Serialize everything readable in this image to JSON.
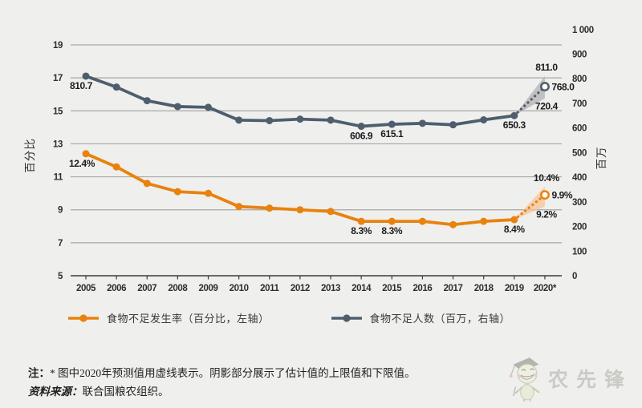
{
  "page": {
    "background": "#efefed"
  },
  "chart_data": {
    "type": "line",
    "title": "",
    "years": [
      2005,
      2006,
      2007,
      2008,
      2009,
      2010,
      2011,
      2012,
      2013,
      2014,
      2015,
      2016,
      2017,
      2018,
      2019,
      2020
    ],
    "x_labels": [
      "2005",
      "2006",
      "2007",
      "2008",
      "2009",
      "2010",
      "2011",
      "2012",
      "2013",
      "2014",
      "2015",
      "2016",
      "2017",
      "2018",
      "2019",
      "2020*"
    ],
    "left_axis": {
      "label": "百分比",
      "min": 5,
      "max": 19,
      "ticks": [
        19,
        17,
        15,
        13,
        11,
        9,
        7,
        5
      ]
    },
    "right_axis": {
      "label": "百万",
      "min": 0,
      "max": 1000,
      "ticks": [
        {
          "v": 1000,
          "label": "1 000"
        },
        {
          "v": 900,
          "label": "900"
        },
        {
          "v": 800,
          "label": "800"
        },
        {
          "v": 700,
          "label": "700"
        },
        {
          "v": 600,
          "label": "600"
        },
        {
          "v": 500,
          "label": "500"
        },
        {
          "v": 400,
          "label": "400"
        },
        {
          "v": 300,
          "label": "300"
        },
        {
          "v": 200,
          "label": "200"
        },
        {
          "v": 100,
          "label": "100"
        },
        {
          "v": 0,
          "label": "0"
        }
      ]
    },
    "grid_color": "#a7a7a7",
    "axis_color": "#3d3d3d",
    "label_color": "#1c1c1c",
    "tick_color": "#2e2e2e",
    "series": [
      {
        "name": "食物不足发生率（百分比，左轴）",
        "axis": "left",
        "color": "#e8820d",
        "band_color": "#f6c untouched",
        "values": [
          12.4,
          11.6,
          10.6,
          10.1,
          10.0,
          9.2,
          9.1,
          9.0,
          8.9,
          8.3,
          8.3,
          8.3,
          8.1,
          8.3,
          8.4
        ],
        "projection_2020": {
          "mid": 9.9,
          "low": 9.2,
          "high": 10.4
        },
        "band": {
          "color": "#f6c291",
          "opacity": 0.7
        },
        "point_labels": [
          {
            "year": 2005,
            "text": "12.4%",
            "dx": -5
          },
          {
            "year": 2014,
            "text": "8.3%"
          },
          {
            "year": 2015,
            "text": "8.3%"
          },
          {
            "year": 2019,
            "text": "8.4%"
          }
        ],
        "projection_labels": {
          "high": "10.4%",
          "mid": "9.9%",
          "low": "9.2%"
        }
      },
      {
        "name": "食物不足人数（百万，右轴）",
        "axis": "right",
        "color": "#4e5e6d",
        "values": [
          810.7,
          766,
          711,
          687,
          684,
          632,
          630,
          636,
          632,
          606.9,
          615.1,
          619,
          613,
          633,
          650.3
        ],
        "projection_2020": {
          "mid": 768.0,
          "low": 720.4,
          "high": 811.0
        },
        "band": {
          "color": "#b9b9b9",
          "opacity": 0.85
        },
        "point_labels": [
          {
            "year": 2005,
            "text": "810.7",
            "dx": -6
          },
          {
            "year": 2014,
            "text": "606.9"
          },
          {
            "year": 2015,
            "text": "615.1"
          },
          {
            "year": 2019,
            "text": "650.3"
          }
        ],
        "projection_labels": {
          "high": "811.0",
          "mid": "768.0",
          "low": "720.4"
        }
      }
    ]
  },
  "legend": {
    "items": [
      {
        "label": "食物不足发生率（百分比，左轴）",
        "color": "#e8820d"
      },
      {
        "label": "食物不足人数（百万，右轴）",
        "color": "#4e5e6d"
      }
    ]
  },
  "notes": {
    "prefix": "注：",
    "text": "* 图中2020年预测值用虚线表示。阴影部分展示了估计值的上限值和下限值。",
    "source_prefix": "资料来源：",
    "source_text": "联合国粮农组织。"
  },
  "watermark": {
    "text": "农先锋",
    "color": "#a9a8a3",
    "mascot": "graduate-mascot-icon"
  }
}
